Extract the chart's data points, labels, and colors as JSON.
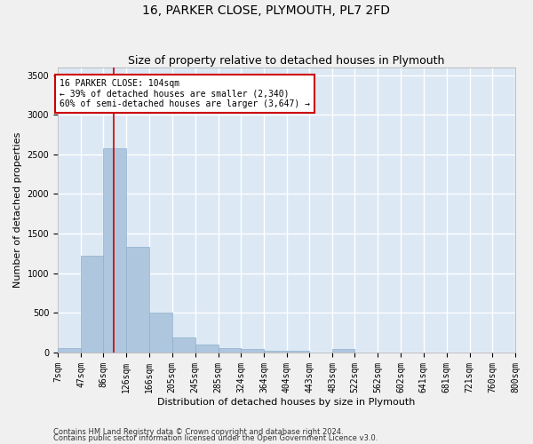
{
  "title": "16, PARKER CLOSE, PLYMOUTH, PL7 2FD",
  "subtitle": "Size of property relative to detached houses in Plymouth",
  "xlabel": "Distribution of detached houses by size in Plymouth",
  "ylabel": "Number of detached properties",
  "footnote1": "Contains HM Land Registry data © Crown copyright and database right 2024.",
  "footnote2": "Contains public sector information licensed under the Open Government Licence v3.0.",
  "bar_color": "#aec6de",
  "bar_edge_color": "#8fb0cc",
  "background_color": "#dce8f4",
  "grid_color": "#ffffff",
  "fig_background": "#f0f0f0",
  "red_line_color": "#cc0000",
  "annotation_box_color": "#cc0000",
  "property_label": "16 PARKER CLOSE: 104sqm",
  "annotation_line1": "← 39% of detached houses are smaller (2,340)",
  "annotation_line2": "60% of semi-detached houses are larger (3,647) →",
  "bin_edges": [
    7,
    47,
    86,
    126,
    166,
    205,
    245,
    285,
    324,
    364,
    404,
    443,
    483,
    522,
    562,
    602,
    641,
    681,
    721,
    760,
    800
  ],
  "bar_heights": [
    55,
    1220,
    2580,
    1330,
    500,
    190,
    100,
    55,
    50,
    25,
    25,
    0,
    50,
    0,
    0,
    0,
    0,
    0,
    0,
    0
  ],
  "ylim": [
    0,
    3600
  ],
  "yticks": [
    0,
    500,
    1000,
    1500,
    2000,
    2500,
    3000,
    3500
  ],
  "red_line_x": 104,
  "title_fontsize": 10,
  "subtitle_fontsize": 9,
  "ylabel_fontsize": 8,
  "xlabel_fontsize": 8,
  "tick_fontsize": 7,
  "annot_fontsize": 7,
  "footnote_fontsize": 6
}
